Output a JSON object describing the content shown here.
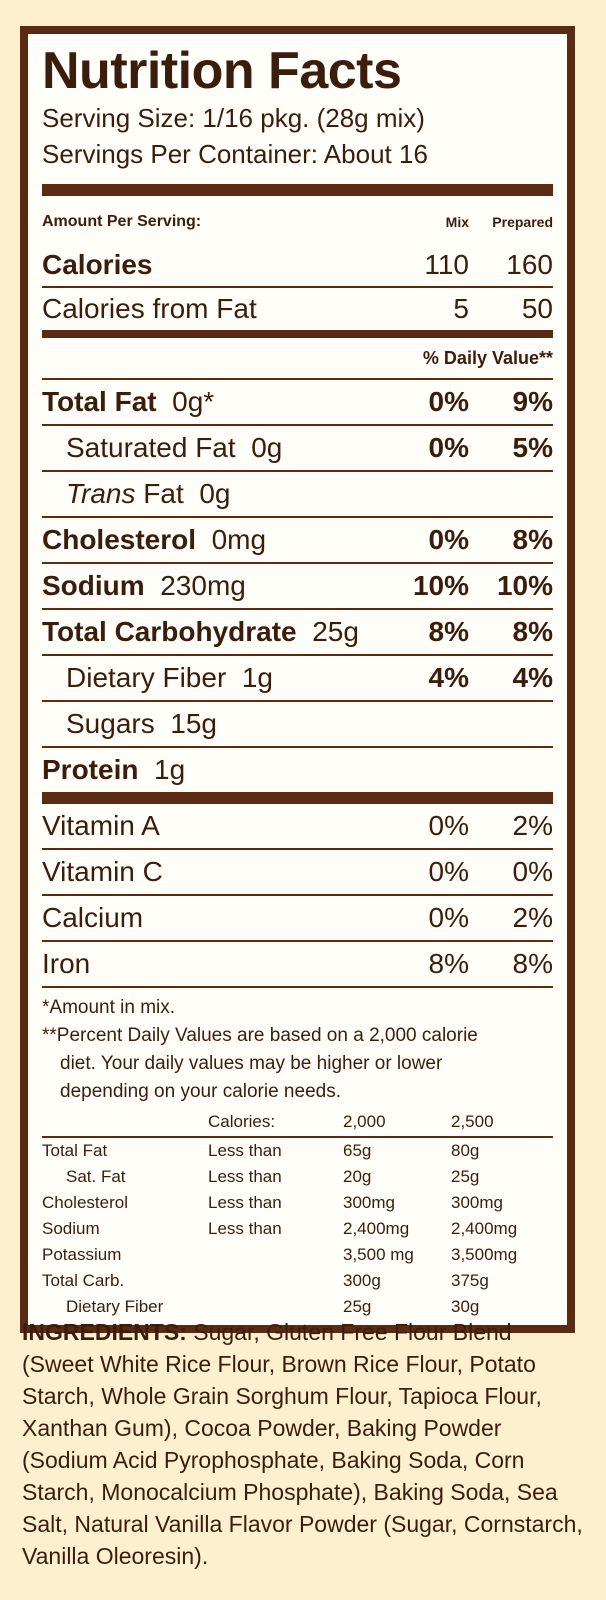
{
  "title": "Nutrition Facts",
  "serving_size": "Serving Size:  1/16 pkg. (28g mix)",
  "servings_per_container": "Servings Per Container:  About 16",
  "amount_header": {
    "label": "Amount Per Serving:",
    "col1": "Mix",
    "col2": "Prepared"
  },
  "calories": {
    "label": "Calories",
    "mix": "110",
    "prepared": "160"
  },
  "calories_from_fat": {
    "label": "Calories from Fat",
    "mix": "5",
    "prepared": "50"
  },
  "daily_value_header": "% Daily Value**",
  "nutrients": [
    {
      "name": "Total Fat",
      "amount": "0g*",
      "mix": "0%",
      "prepared": "9%"
    },
    {
      "name": "Saturated Fat",
      "amount": "0g",
      "mix": "0%",
      "prepared": "5%"
    },
    {
      "name": "Trans",
      "name_rest": "Fat",
      "amount": "0g",
      "mix": "",
      "prepared": ""
    },
    {
      "name": "Cholesterol",
      "amount": "0mg",
      "mix": "0%",
      "prepared": "8%"
    },
    {
      "name": "Sodium",
      "amount": "230mg",
      "mix": "10%",
      "prepared": "10%"
    },
    {
      "name": "Total Carbohydrate",
      "amount": "25g",
      "mix": "8%",
      "prepared": "8%"
    },
    {
      "name": "Dietary Fiber",
      "amount": "1g",
      "mix": "4%",
      "prepared": "4%"
    },
    {
      "name": "Sugars",
      "amount": "15g",
      "mix": "",
      "prepared": ""
    },
    {
      "name": "Protein",
      "amount": "1g",
      "mix": "",
      "prepared": ""
    }
  ],
  "vitamins": [
    {
      "name": "Vitamin A",
      "mix": "0%",
      "prepared": "2%"
    },
    {
      "name": "Vitamin C",
      "mix": "0%",
      "prepared": "0%"
    },
    {
      "name": "Calcium",
      "mix": "0%",
      "prepared": "2%"
    },
    {
      "name": "Iron",
      "mix": "8%",
      "prepared": "8%"
    }
  ],
  "footnote_amount": "*Amount in mix.",
  "footnote_dv_1": "**Percent Daily Values are based on a 2,000 calorie",
  "footnote_dv_2": "diet. Your daily values may be higher or lower",
  "footnote_dv_3": "depending on your calorie needs.",
  "dv_table": {
    "header": {
      "label": "Calories:",
      "a": "2,000",
      "b": "2,500"
    },
    "rows": [
      {
        "name": "Total Fat",
        "cond": "Less than",
        "a": "65g",
        "b": "80g"
      },
      {
        "name": "Sat. Fat",
        "cond": "Less than",
        "a": "20g",
        "b": "25g"
      },
      {
        "name": "Cholesterol",
        "cond": "Less than",
        "a": "300mg",
        "b": "300mg"
      },
      {
        "name": "Sodium",
        "cond": "Less than",
        "a": "2,400mg",
        "b": "2,400mg"
      },
      {
        "name": "Potassium",
        "cond": "",
        "a": "3,500 mg",
        "b": "3,500mg"
      },
      {
        "name": "Total Carb.",
        "cond": "",
        "a": "300g",
        "b": "375g"
      },
      {
        "name": "Dietary Fiber",
        "cond": "",
        "a": "25g",
        "b": "30g"
      }
    ]
  },
  "ingredients": {
    "label": "INGREDIENTS:",
    "text": "Sugar, Gluten Free Flour Blend (Sweet White Rice Flour, Brown Rice Flour, Potato Starch, Whole Grain Sorghum Flour, Tapioca Flour, Xanthan Gum), Cocoa Powder, Baking Powder (Sodium Acid Pyrophosphate, Baking Soda, Corn Starch, Monocalcium Phosphate), Baking Soda, Sea Salt, Natural Vanilla Flavor Powder (Sugar, Cornstarch, Vanilla Oleoresin)."
  }
}
